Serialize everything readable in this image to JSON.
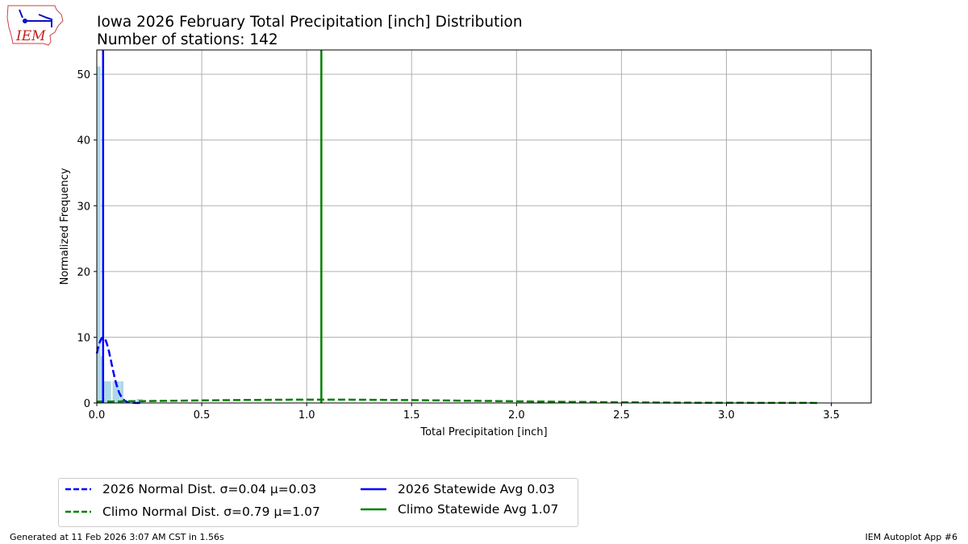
{
  "header": {
    "title": "Iowa 2026 February Total Precipitation [inch] Distribution",
    "subtitle": "Number of stations: 142",
    "logo_text": "IEM"
  },
  "footer": {
    "generated": "Generated at 11 Feb 2026 3:07 AM CST in 1.56s",
    "app": "IEM Autoplot App #6"
  },
  "chart_data": {
    "type": "bar",
    "title": "Iowa 2026 February Total Precipitation [inch] Distribution",
    "subtitle": "Number of stations: 142",
    "xlabel": "Total Precipitation [inch]",
    "ylabel": "Normalized Frequency",
    "xlim": [
      0,
      3.69
    ],
    "ylim": [
      0,
      53.7
    ],
    "xticks": [
      "0.0",
      "0.5",
      "1.0",
      "1.5",
      "2.0",
      "2.5",
      "3.0",
      "3.5"
    ],
    "xtick_values": [
      0,
      0.5,
      1.0,
      1.5,
      2.0,
      2.5,
      3.0,
      3.5
    ],
    "yticks": [
      "0",
      "10",
      "20",
      "30",
      "40",
      "50"
    ],
    "ytick_values": [
      0,
      10,
      20,
      30,
      40,
      50
    ],
    "grid": true,
    "legend_placement": "below",
    "histogram": {
      "color": "#add8e6",
      "bins": [
        {
          "left": 0.0,
          "right": 0.018,
          "value": 51.2
        },
        {
          "left": 0.018,
          "right": 0.03,
          "value": 7.1
        },
        {
          "left": 0.03,
          "right": 0.068,
          "value": 3.3
        },
        {
          "left": 0.075,
          "right": 0.11,
          "value": 3.3
        },
        {
          "left": 0.112,
          "right": 0.127,
          "value": 3.3
        },
        {
          "left": 0.19,
          "right": 0.22,
          "value": 0.6
        }
      ]
    },
    "series": [
      {
        "name": "2026 Normal Dist. σ=0.04 μ=0.03",
        "kind": "normal-pdf",
        "mu": 0.03,
        "sigma": 0.04,
        "x_range": [
          0,
          0.22
        ],
        "color": "#0000ff",
        "style": "dashed"
      },
      {
        "name": "Climo Normal Dist. σ=0.79 μ=1.07",
        "kind": "normal-pdf",
        "mu": 1.07,
        "sigma": 0.79,
        "x_range": [
          0,
          3.44
        ],
        "color": "#008000",
        "style": "dashed"
      },
      {
        "name": "2026 Statewide Avg 0.03",
        "kind": "vline",
        "x": 0.03,
        "color": "#0000ff",
        "style": "solid"
      },
      {
        "name": "Climo Statewide Avg 1.07",
        "kind": "vline",
        "x": 1.07,
        "color": "#008000",
        "style": "solid"
      }
    ]
  }
}
